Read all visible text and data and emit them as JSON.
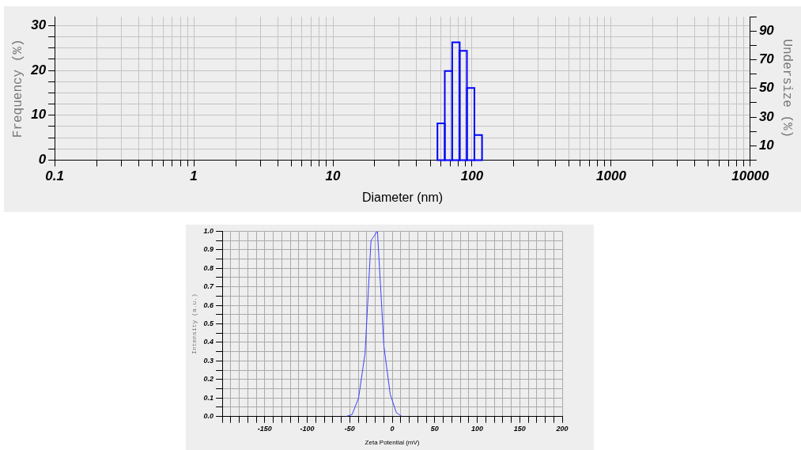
{
  "chart_data": [
    {
      "type": "histogram",
      "xlabel": "Diameter (nm)",
      "ylabel": "Frequency (%)",
      "y2label": "Undersize (%)",
      "log": "x",
      "grid": true,
      "color": "#0000ff",
      "bins": [
        56.4,
        63.7,
        72,
        81.5,
        91.9,
        104,
        118
      ],
      "values": [
        8.2,
        19.9,
        26.3,
        24.4,
        16.1,
        5.6
      ],
      "xlim": [
        0.1,
        10000
      ],
      "xticks": [
        0.1,
        {
          "value": 0.2,
          "label": null
        },
        {
          "value": 0.3,
          "label": null
        },
        {
          "value": 0.4,
          "label": null
        },
        {
          "value": 0.5,
          "label": null
        },
        {
          "value": 0.6,
          "label": null
        },
        {
          "value": 0.7,
          "label": null
        },
        {
          "value": 0.8,
          "label": null
        },
        {
          "value": 0.9,
          "label": null
        },
        1,
        {
          "value": 2,
          "label": null
        },
        {
          "value": 3,
          "label": null
        },
        {
          "value": 4,
          "label": null
        },
        {
          "value": 5,
          "label": null
        },
        {
          "value": 6,
          "label": null
        },
        {
          "value": 7,
          "label": null
        },
        {
          "value": 8,
          "label": null
        },
        {
          "value": 9,
          "label": null
        },
        10,
        {
          "value": 20,
          "label": null
        },
        {
          "value": 30,
          "label": null
        },
        {
          "value": 40,
          "label": null
        },
        {
          "value": 50,
          "label": null
        },
        {
          "value": 60,
          "label": null
        },
        {
          "value": 70,
          "label": null
        },
        {
          "value": 80,
          "label": null
        },
        {
          "value": 90,
          "label": null
        },
        100,
        {
          "value": 200,
          "label": null
        },
        {
          "value": 300,
          "label": null
        },
        {
          "value": 400,
          "label": null
        },
        {
          "value": 500,
          "label": null
        },
        {
          "value": 600,
          "label": null
        },
        {
          "value": 700,
          "label": null
        },
        {
          "value": 800,
          "label": null
        },
        {
          "value": 900,
          "label": null
        },
        1000,
        {
          "value": 2000,
          "label": null
        },
        {
          "value": 3000,
          "label": null
        },
        {
          "value": 4000,
          "label": null
        },
        {
          "value": 5000,
          "label": null
        },
        {
          "value": 6000,
          "label": null
        },
        {
          "value": 7000,
          "label": null
        },
        {
          "value": 8000,
          "label": null
        },
        {
          "value": 9000,
          "label": null
        },
        10000
      ],
      "ylim": [
        0,
        32
      ],
      "yticks": [
        0,
        {
          "value": 2.5,
          "label": null
        },
        {
          "value": 5,
          "label": null
        },
        {
          "value": 7.5,
          "label": null
        },
        10,
        {
          "value": 12.5,
          "label": null
        },
        {
          "value": 15,
          "label": null
        },
        {
          "value": 17.5,
          "label": null
        },
        20,
        {
          "value": 22.5,
          "label": null
        },
        {
          "value": 25,
          "label": null
        },
        {
          "value": 27.5,
          "label": null
        },
        30
      ],
      "y2lim": [
        0,
        100
      ],
      "y2ticks": [
        {
          "value": 0,
          "label": null
        },
        10,
        {
          "value": 20,
          "label": null
        },
        30,
        {
          "value": 40,
          "label": null
        },
        50,
        {
          "value": 60,
          "label": null
        },
        70,
        {
          "value": 80,
          "label": null
        },
        90,
        {
          "value": 100,
          "label": null
        }
      ]
    },
    {
      "type": "line",
      "xlabel": "Zeta Potential (mV)",
      "ylabel": "Intensity (a.u.)",
      "grid": true,
      "marker": "none",
      "x": [
        -54.3,
        -47.3,
        -39.6,
        -32,
        -25,
        -17.4,
        -9.8,
        -2.4,
        4.9,
        11.6
      ],
      "series": [
        {
          "color": "#4040ff",
          "values": [
            0,
            0.01,
            0.1,
            0.34,
            0.95,
            1.0,
            0.38,
            0.12,
            0.02,
            0
          ]
        }
      ],
      "xlim": [
        -200,
        200
      ],
      "xticks": [
        {
          "value": -200,
          "label": null
        },
        {
          "value": -190,
          "label": null
        },
        {
          "value": -180,
          "label": null
        },
        {
          "value": -170,
          "label": null
        },
        {
          "value": -160,
          "label": null
        },
        -150,
        {
          "value": -140,
          "label": null
        },
        {
          "value": -130,
          "label": null
        },
        {
          "value": -120,
          "label": null
        },
        {
          "value": -110,
          "label": null
        },
        -100,
        {
          "value": -90,
          "label": null
        },
        {
          "value": -80,
          "label": null
        },
        {
          "value": -70,
          "label": null
        },
        {
          "value": -60,
          "label": null
        },
        -50,
        {
          "value": -40,
          "label": null
        },
        {
          "value": -30,
          "label": null
        },
        {
          "value": -20,
          "label": null
        },
        {
          "value": -10,
          "label": null
        },
        0,
        {
          "value": 10,
          "label": null
        },
        {
          "value": 20,
          "label": null
        },
        {
          "value": 30,
          "label": null
        },
        {
          "value": 40,
          "label": null
        },
        50,
        {
          "value": 60,
          "label": null
        },
        {
          "value": 70,
          "label": null
        },
        {
          "value": 80,
          "label": null
        },
        {
          "value": 90,
          "label": null
        },
        100,
        {
          "value": 110,
          "label": null
        },
        {
          "value": 120,
          "label": null
        },
        {
          "value": 130,
          "label": null
        },
        {
          "value": 140,
          "label": null
        },
        150,
        {
          "value": 160,
          "label": null
        },
        {
          "value": 170,
          "label": null
        },
        {
          "value": 180,
          "label": null
        },
        {
          "value": 190,
          "label": null
        },
        200
      ],
      "ylim": [
        0,
        1.0
      ],
      "yticks": [
        {
          "value": 0,
          "label": "0.0"
        },
        {
          "value": 0.05,
          "label": null
        },
        0.1,
        {
          "value": 0.15,
          "label": null
        },
        0.2,
        {
          "value": 0.25,
          "label": null
        },
        0.3,
        {
          "value": 0.35,
          "label": null
        },
        0.4,
        {
          "value": 0.45,
          "label": null
        },
        0.5,
        {
          "value": 0.55,
          "label": null
        },
        0.6,
        {
          "value": 0.65,
          "label": null
        },
        0.7,
        {
          "value": 0.75,
          "label": null
        },
        0.8,
        {
          "value": 0.85,
          "label": null
        },
        0.9,
        {
          "value": 0.95,
          "label": null
        },
        {
          "value": 1.0,
          "label": "1.0"
        }
      ]
    }
  ]
}
